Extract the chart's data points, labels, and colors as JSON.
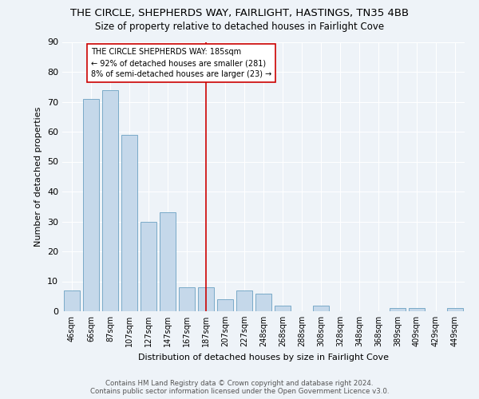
{
  "title": "THE CIRCLE, SHEPHERDS WAY, FAIRLIGHT, HASTINGS, TN35 4BB",
  "subtitle": "Size of property relative to detached houses in Fairlight Cove",
  "xlabel": "Distribution of detached houses by size in Fairlight Cove",
  "ylabel": "Number of detached properties",
  "footer1": "Contains HM Land Registry data © Crown copyright and database right 2024.",
  "footer2": "Contains public sector information licensed under the Open Government Licence v3.0.",
  "categories": [
    "46sqm",
    "66sqm",
    "87sqm",
    "107sqm",
    "127sqm",
    "147sqm",
    "167sqm",
    "187sqm",
    "207sqm",
    "227sqm",
    "248sqm",
    "268sqm",
    "288sqm",
    "308sqm",
    "328sqm",
    "348sqm",
    "368sqm",
    "389sqm",
    "409sqm",
    "429sqm",
    "449sqm"
  ],
  "values": [
    7,
    71,
    74,
    59,
    30,
    33,
    8,
    8,
    4,
    7,
    6,
    2,
    0,
    2,
    0,
    0,
    0,
    1,
    1,
    0,
    1
  ],
  "bar_color": "#c5d8ea",
  "bar_edge_color": "#7aaac8",
  "reference_line_x": 7,
  "reference_line_label": "THE CIRCLE SHEPHERDS WAY: 185sqm",
  "annotation_line1": "← 92% of detached houses are smaller (281)",
  "annotation_line2": "8% of semi-detached houses are larger (23) →",
  "annotation_box_color": "#ffffff",
  "annotation_box_edge": "#cc0000",
  "reference_line_color": "#cc0000",
  "ylim": [
    0,
    90
  ],
  "yticks": [
    0,
    10,
    20,
    30,
    40,
    50,
    60,
    70,
    80,
    90
  ],
  "bg_color": "#eef3f8",
  "grid_color": "#ffffff",
  "title_fontsize": 9.5,
  "subtitle_fontsize": 8.5
}
